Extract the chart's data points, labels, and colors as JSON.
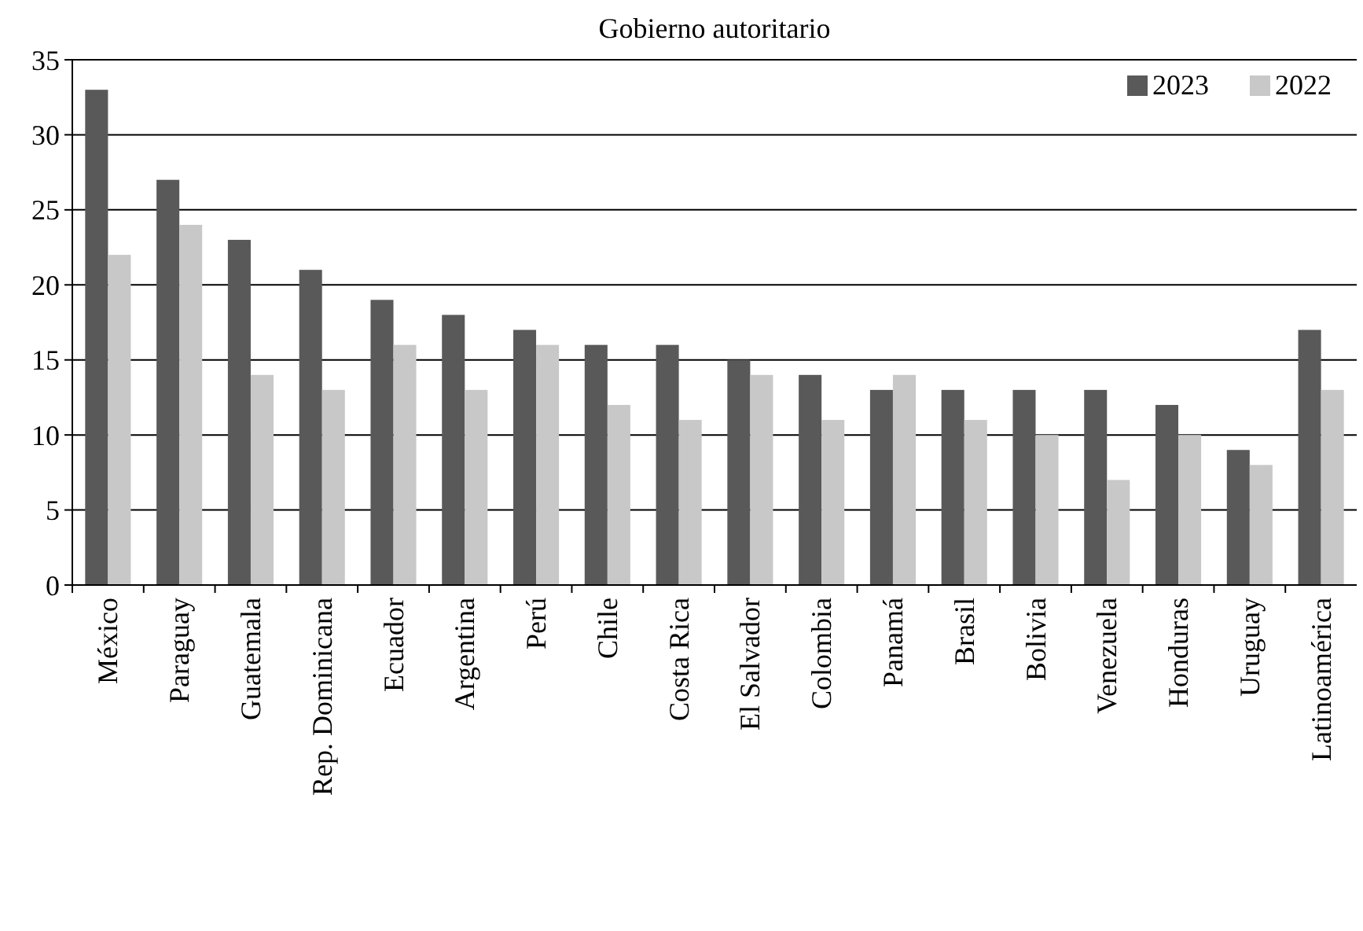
{
  "chart_data": {
    "type": "bar",
    "title": "Gobierno autoritario",
    "categories": [
      "México",
      "Paraguay",
      "Guatemala",
      "Rep. Dominicana",
      "Ecuador",
      "Argentina",
      "Perú",
      "Chile",
      "Costa Rica",
      "El Salvador",
      "Colombia",
      "Panamá",
      "Brasil",
      "Bolivia",
      "Venezuela",
      "Honduras",
      "Uruguay",
      "Latinoamérica"
    ],
    "series": [
      {
        "name": "2023",
        "color": "#595959",
        "values": [
          33,
          27,
          23,
          21,
          19,
          18,
          17,
          16,
          16,
          15,
          14,
          13,
          13,
          13,
          13,
          12,
          9,
          17
        ]
      },
      {
        "name": "2022",
        "color": "#c8c8c8",
        "values": [
          22,
          24,
          14,
          13,
          16,
          13,
          16,
          12,
          11,
          14,
          11,
          14,
          11,
          10,
          7,
          10,
          8,
          13
        ]
      }
    ],
    "ylim": [
      0,
      35
    ],
    "yticks": [
      0,
      5,
      10,
      15,
      20,
      25,
      30,
      35
    ],
    "grid": "y",
    "legend": "top right"
  }
}
